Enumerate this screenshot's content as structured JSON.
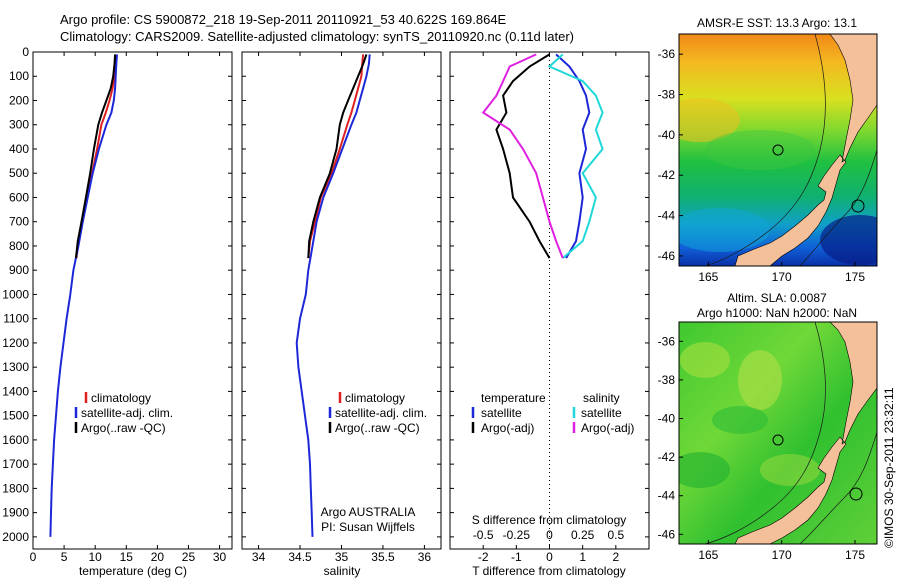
{
  "header": {
    "line1": "Argo profile: CS 5900872_218 19-Sep-2011 20110921_53 40.622S 169.864E",
    "line2": "Climatology: CARS2009. Satellite-adjusted climatology: synTS_20110920.nc (0.11d later)"
  },
  "credit": "©IMOS 30-Sep-2011 23:32:11",
  "colors": {
    "climatology": "#e02020",
    "satellite": "#1c28d8",
    "argo": "#000000",
    "s_satellite": "#20d8d8",
    "s_argo": "#e020e0",
    "land": "#f4c09a",
    "contour": "#1a1a1a"
  },
  "chart_data": [
    {
      "id": "temperature",
      "type": "line",
      "xlabel": "temperature (deg C)",
      "xlim": [
        0,
        32
      ],
      "xticks": [
        0,
        5,
        10,
        15,
        20,
        25,
        30
      ],
      "ylim": [
        2050,
        0
      ],
      "yticks": [
        0,
        100,
        200,
        300,
        400,
        500,
        600,
        700,
        800,
        900,
        1000,
        1100,
        1200,
        1300,
        1400,
        1500,
        1600,
        1700,
        1800,
        1900,
        2000
      ],
      "legend": [
        "climatology",
        "satellite-adj. clim.",
        "Argo(..raw -QC)"
      ],
      "series": [
        {
          "name": "climatology",
          "color_key": "climatology",
          "points": [
            [
              13.3,
              10
            ],
            [
              13.2,
              50
            ],
            [
              13.1,
              100
            ],
            [
              12.8,
              150
            ],
            [
              12.3,
              200
            ],
            [
              11.7,
              250
            ],
            [
              11.0,
              300
            ],
            [
              10.3,
              400
            ],
            [
              9.5,
              500
            ],
            [
              8.7,
              600
            ],
            [
              7.9,
              700
            ],
            [
              7.3,
              780
            ],
            [
              7.0,
              850
            ]
          ]
        },
        {
          "name": "satellite-adj. clim.",
          "color_key": "satellite",
          "points": [
            [
              13.5,
              10
            ],
            [
              13.4,
              50
            ],
            [
              13.3,
              100
            ],
            [
              13.2,
              150
            ],
            [
              13.0,
              200
            ],
            [
              12.6,
              250
            ],
            [
              11.8,
              300
            ],
            [
              10.6,
              400
            ],
            [
              9.6,
              500
            ],
            [
              8.8,
              600
            ],
            [
              8.0,
              700
            ],
            [
              7.3,
              800
            ],
            [
              6.5,
              900
            ],
            [
              6.0,
              1000
            ],
            [
              5.4,
              1100
            ],
            [
              4.9,
              1200
            ],
            [
              4.4,
              1300
            ],
            [
              4.0,
              1400
            ],
            [
              3.7,
              1500
            ],
            [
              3.4,
              1600
            ],
            [
              3.2,
              1700
            ],
            [
              3.0,
              1800
            ],
            [
              2.9,
              1900
            ],
            [
              2.8,
              2000
            ]
          ]
        },
        {
          "name": "Argo(..raw -QC)",
          "color_key": "argo",
          "points": [
            [
              13.2,
              10
            ],
            [
              13.1,
              50
            ],
            [
              12.9,
              100
            ],
            [
              12.5,
              150
            ],
            [
              11.8,
              200
            ],
            [
              11.1,
              250
            ],
            [
              10.5,
              300
            ],
            [
              9.8,
              400
            ],
            [
              9.2,
              500
            ],
            [
              8.5,
              600
            ],
            [
              7.8,
              700
            ],
            [
              7.2,
              780
            ],
            [
              6.9,
              850
            ]
          ]
        }
      ]
    },
    {
      "id": "salinity",
      "type": "line",
      "xlabel": "salinity",
      "xlim": [
        33.8,
        36.2
      ],
      "xticks": [
        34,
        34.5,
        35,
        35.5,
        36
      ],
      "ylim": [
        2050,
        0
      ],
      "legend": [
        "climatology",
        "satellite-adj. clim.",
        "Argo(..raw -QC)"
      ],
      "annotation": [
        "Argo AUSTRALIA",
        "PI: Susan Wijffels"
      ],
      "series": [
        {
          "name": "climatology",
          "color_key": "climatology",
          "points": [
            [
              35.26,
              10
            ],
            [
              35.25,
              50
            ],
            [
              35.24,
              100
            ],
            [
              35.2,
              150
            ],
            [
              35.16,
              200
            ],
            [
              35.12,
              250
            ],
            [
              35.07,
              300
            ],
            [
              34.98,
              400
            ],
            [
              34.88,
              500
            ],
            [
              34.75,
              600
            ],
            [
              34.68,
              700
            ],
            [
              34.62,
              780
            ],
            [
              34.6,
              850
            ]
          ]
        },
        {
          "name": "satellite-adj. clim.",
          "color_key": "satellite",
          "points": [
            [
              35.34,
              10
            ],
            [
              35.33,
              50
            ],
            [
              35.3,
              100
            ],
            [
              35.26,
              150
            ],
            [
              35.22,
              200
            ],
            [
              35.18,
              250
            ],
            [
              35.12,
              300
            ],
            [
              35.01,
              400
            ],
            [
              34.9,
              500
            ],
            [
              34.78,
              600
            ],
            [
              34.7,
              700
            ],
            [
              34.65,
              800
            ],
            [
              34.6,
              900
            ],
            [
              34.57,
              1000
            ],
            [
              34.5,
              1100
            ],
            [
              34.46,
              1200
            ],
            [
              34.48,
              1300
            ],
            [
              34.52,
              1400
            ],
            [
              34.56,
              1500
            ],
            [
              34.6,
              1600
            ],
            [
              34.62,
              1700
            ],
            [
              34.63,
              1800
            ],
            [
              34.64,
              1900
            ],
            [
              34.65,
              2000
            ]
          ]
        },
        {
          "name": "Argo(..raw -QC)",
          "color_key": "argo",
          "points": [
            [
              35.3,
              10
            ],
            [
              35.26,
              50
            ],
            [
              35.2,
              100
            ],
            [
              35.14,
              150
            ],
            [
              35.08,
              200
            ],
            [
              35.02,
              250
            ],
            [
              34.98,
              300
            ],
            [
              34.94,
              400
            ],
            [
              34.86,
              500
            ],
            [
              34.74,
              600
            ],
            [
              34.66,
              700
            ],
            [
              34.61,
              780
            ],
            [
              34.6,
              850
            ]
          ]
        }
      ]
    },
    {
      "id": "difference",
      "type": "line",
      "xlabel": "T difference from climatology",
      "xlabel_top": "S difference from climatology",
      "xlim": [
        -3,
        3
      ],
      "xticks": [
        -2,
        -1,
        0,
        1,
        2
      ],
      "sticks": [
        "-0.5",
        "-0.25",
        "0",
        "0.25",
        "0.5"
      ],
      "ylim": [
        2050,
        0
      ],
      "legend_headers": [
        "temperature",
        "salinity"
      ],
      "legend": [
        "satellite",
        "Argo(-adj)",
        "satellite",
        "Argo(-adj)"
      ],
      "series": [
        {
          "name": "satellite",
          "group": "temperature",
          "color_key": "satellite",
          "points": [
            [
              0.2,
              10
            ],
            [
              0.6,
              60
            ],
            [
              0.9,
              120
            ],
            [
              1.1,
              180
            ],
            [
              1.2,
              250
            ],
            [
              1.0,
              320
            ],
            [
              1.1,
              400
            ],
            [
              0.9,
              500
            ],
            [
              1.0,
              600
            ],
            [
              0.9,
              700
            ],
            [
              0.8,
              780
            ],
            [
              0.5,
              850
            ]
          ]
        },
        {
          "name": "Argo(-adj)",
          "group": "temperature",
          "color_key": "argo",
          "points": [
            [
              0.0,
              10
            ],
            [
              -0.6,
              60
            ],
            [
              -1.1,
              120
            ],
            [
              -1.4,
              180
            ],
            [
              -1.3,
              250
            ],
            [
              -1.6,
              320
            ],
            [
              -1.4,
              400
            ],
            [
              -1.2,
              500
            ],
            [
              -1.1,
              600
            ],
            [
              -0.6,
              700
            ],
            [
              -0.3,
              780
            ],
            [
              0.0,
              850
            ]
          ]
        },
        {
          "name": "satellite",
          "group": "salinity",
          "color_key": "s_satellite",
          "points": [
            [
              0.1,
              10
            ],
            [
              0.0,
              60
            ],
            [
              0.25,
              120
            ],
            [
              0.35,
              180
            ],
            [
              0.4,
              250
            ],
            [
              0.35,
              320
            ],
            [
              0.4,
              400
            ],
            [
              0.25,
              500
            ],
            [
              0.35,
              600
            ],
            [
              0.3,
              700
            ],
            [
              0.25,
              780
            ],
            [
              0.1,
              850
            ]
          ]
        },
        {
          "name": "Argo(-adj)",
          "group": "salinity",
          "color_key": "s_argo",
          "points": [
            [
              -0.1,
              10
            ],
            [
              -0.3,
              60
            ],
            [
              -0.35,
              120
            ],
            [
              -0.4,
              180
            ],
            [
              -0.5,
              250
            ],
            [
              -0.3,
              320
            ],
            [
              -0.2,
              400
            ],
            [
              -0.1,
              500
            ],
            [
              -0.05,
              600
            ],
            [
              0.0,
              700
            ],
            [
              0.05,
              780
            ],
            [
              0.1,
              850
            ]
          ]
        }
      ]
    },
    {
      "id": "sst_map",
      "type": "heatmap",
      "title": "AMSR-E SST: 13.3 Argo: 13.1",
      "xticks": [
        165,
        170,
        175
      ],
      "yticks": [
        -36,
        -38,
        -40,
        -42,
        -44,
        -46
      ],
      "xlim": [
        163,
        176.5
      ],
      "ylim": [
        -35,
        -46.5
      ],
      "argo_position": [
        169.864,
        -40.622
      ]
    },
    {
      "id": "sla_map",
      "type": "heatmap",
      "title_line1": "Altim. SLA: 0.0087",
      "title_line2": "Argo h1000: NaN h2000: NaN",
      "xticks": [
        165,
        170,
        175
      ],
      "yticks": [
        -36,
        -38,
        -40,
        -42,
        -44,
        -46
      ],
      "xlim": [
        163,
        176.5
      ],
      "ylim": [
        -35,
        -46.5
      ],
      "argo_position": [
        169.864,
        -40.622
      ]
    }
  ]
}
